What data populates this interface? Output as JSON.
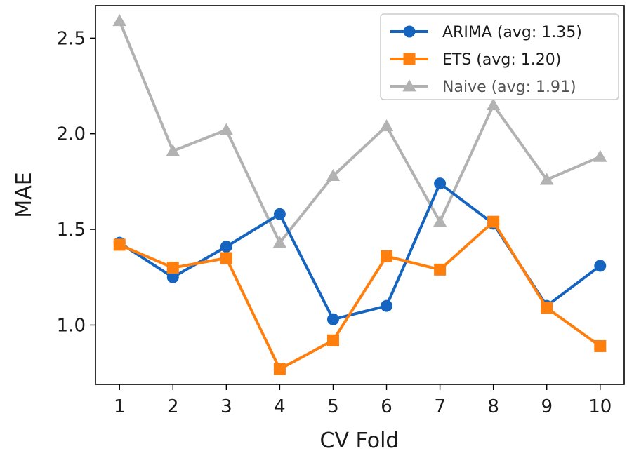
{
  "chart_data": {
    "type": "line",
    "title": "",
    "xlabel": "CV Fold",
    "ylabel": "MAE",
    "x": [
      1,
      2,
      3,
      4,
      5,
      6,
      7,
      8,
      9,
      10
    ],
    "x_ticks": [
      "1",
      "2",
      "3",
      "4",
      "5",
      "6",
      "7",
      "8",
      "9",
      "10"
    ],
    "y_ticks": [
      "1.0",
      "1.5",
      "2.0",
      "2.5"
    ],
    "xlim": [
      0.55,
      10.45
    ],
    "ylim": [
      0.69,
      2.67
    ],
    "grid": false,
    "legend_position": "top-right",
    "series": [
      {
        "name": "ARIMA (avg: 1.35)",
        "marker": "circle",
        "color": "#1565c0",
        "values": [
          1.43,
          1.25,
          1.41,
          1.58,
          1.03,
          1.1,
          1.74,
          1.53,
          1.1,
          1.31
        ]
      },
      {
        "name": "ETS (avg: 1.20)",
        "marker": "square",
        "color": "#ff7f0e",
        "values": [
          1.42,
          1.3,
          1.35,
          0.77,
          0.92,
          1.36,
          1.29,
          1.54,
          1.09,
          0.89
        ]
      },
      {
        "name": "Naive (avg: 1.91)",
        "marker": "triangle",
        "color": "#999999",
        "values": [
          2.59,
          1.91,
          2.02,
          1.43,
          1.78,
          2.04,
          1.54,
          2.15,
          1.76,
          1.88
        ]
      }
    ]
  }
}
